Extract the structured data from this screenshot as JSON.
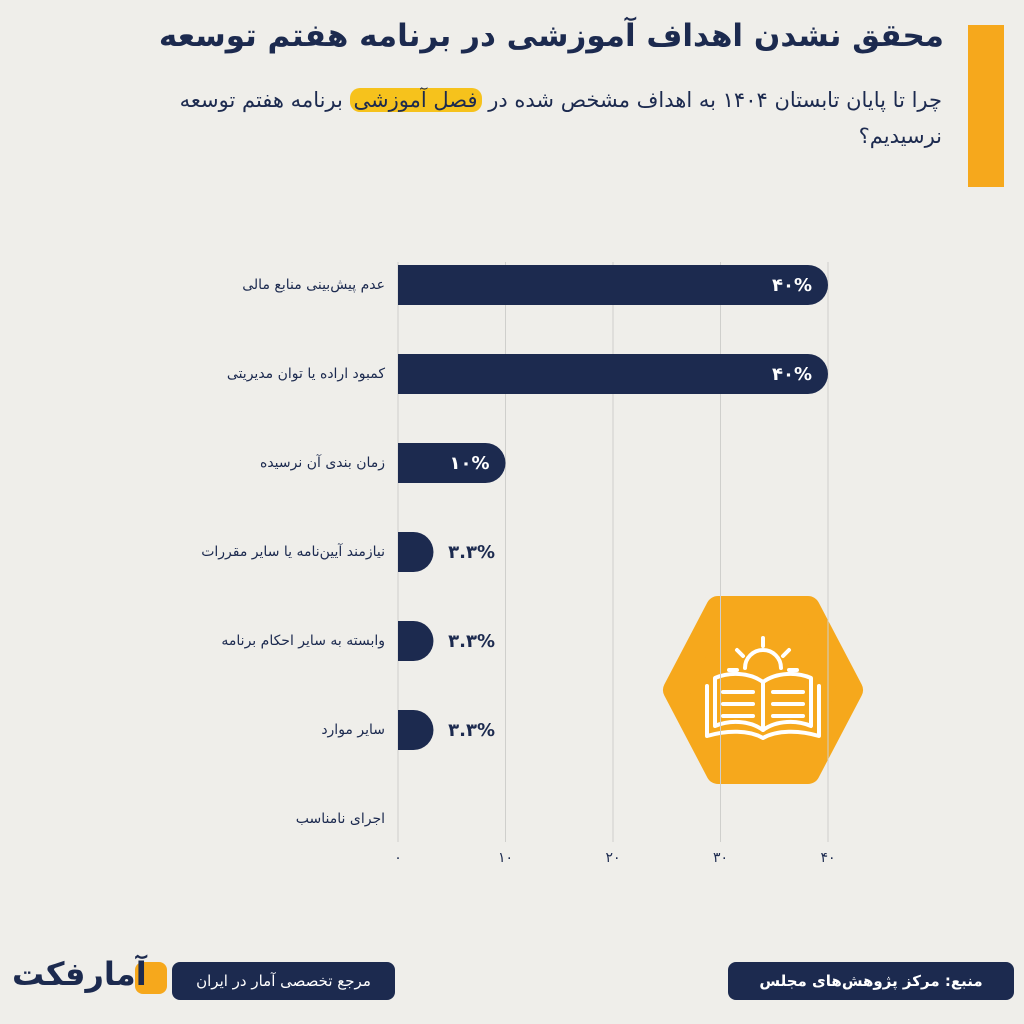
{
  "header": {
    "title": "محقق نشدن اهداف آموزشی در برنامه هفتم توسعه",
    "subtitle_parts": [
      "چرا تا پایان تابستان ۱۴۰۴ به اهداف مشخص شده در ",
      "فصل آموزشی",
      " برنامه هفتم توسعه نرسیدیم؟"
    ]
  },
  "chart_data": {
    "type": "hbar",
    "categories": [
      "عدم پیش‌بینی منابع مالی",
      "کمبود اراده یا توان مدیریتی",
      "زمان بندی آن نرسیده",
      "نیازمند آیین‌نامه یا سایر مقررات",
      "وابسته به سایر احکام برنامه",
      "سایر موارد",
      "اجرای نامناسب"
    ],
    "values": [
      40,
      40,
      10,
      3.3,
      3.3,
      3.3,
      null
    ],
    "value_labels": [
      "۴۰%",
      "۴۰%",
      "۱۰%",
      "۳.۳%",
      "۳.۳%",
      "۳.۳%",
      null
    ],
    "color": "#1c2a4f",
    "xlim": [
      0,
      40
    ],
    "xticks": [
      {
        "value": 0,
        "label": "۰"
      },
      {
        "value": 10,
        "label": "۱۰"
      },
      {
        "value": 20,
        "label": "۲۰"
      },
      {
        "value": 30,
        "label": "۳۰"
      },
      {
        "value": 40,
        "label": "۴۰"
      }
    ],
    "grid": true
  },
  "footer": {
    "source": "منبع: مرکز پژوهش‌های مجلس",
    "tagline": "مرجع تخصصی آمار در ایران",
    "brand": "آمارفکت"
  }
}
